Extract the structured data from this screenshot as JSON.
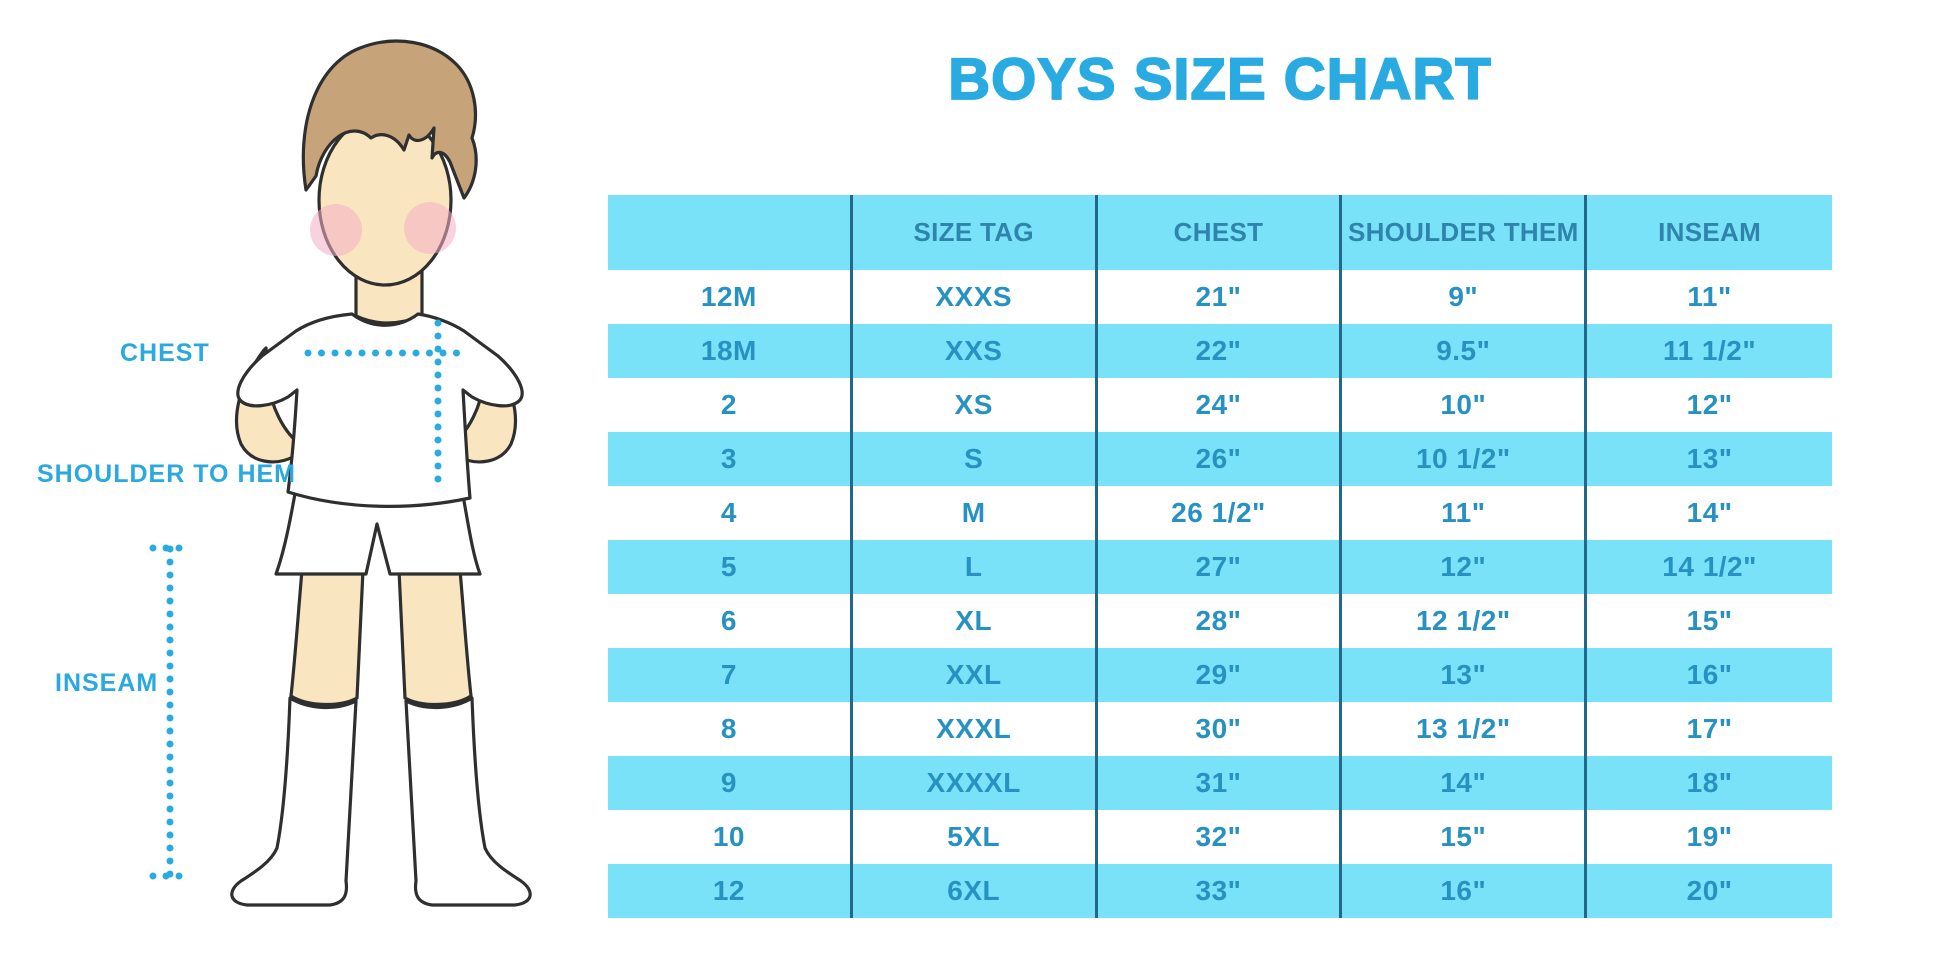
{
  "title": "BOYS SIZE CHART",
  "diagram": {
    "chest_label": "CHEST",
    "shoulder_to_hem_label": "SHOULDER TO HEM",
    "inseam_label": "INSEAM",
    "illustration": "boy in white t-shirt, shorts and knee socks with dotted measurement lines"
  },
  "colors": {
    "title_blue": "#29ABE2",
    "stripe_cyan": "#79E2F8",
    "header_text": "#2E84AC",
    "cell_text": "#2792C2",
    "divider_line": "#22678C",
    "label_blue": "#29A9E0",
    "dotted_line": "#29ABE2",
    "skin": "#FAE5C1",
    "hair": "#C6A379",
    "blush": "#F2AFC4"
  },
  "chart_data": {
    "type": "table",
    "title": "BOYS SIZE CHART",
    "columns": [
      "",
      "SIZE TAG",
      "CHEST",
      "SHOULDER THEM",
      "INSEAM"
    ],
    "rows": [
      [
        "12M",
        "XXXS",
        "21\"",
        "9\"",
        "11\""
      ],
      [
        "18M",
        "XXS",
        "22\"",
        "9.5\"",
        "11 1/2\""
      ],
      [
        "2",
        "XS",
        "24\"",
        "10\"",
        "12\""
      ],
      [
        "3",
        "S",
        "26\"",
        "10 1/2\"",
        "13\""
      ],
      [
        "4",
        "M",
        "26 1/2\"",
        "11\"",
        "14\""
      ],
      [
        "5",
        "L",
        "27\"",
        "12\"",
        "14 1/2\""
      ],
      [
        "6",
        "XL",
        "28\"",
        "12 1/2\"",
        "15\""
      ],
      [
        "7",
        "XXL",
        "29\"",
        "13\"",
        "16\""
      ],
      [
        "8",
        "XXXL",
        "30\"",
        "13 1/2\"",
        "17\""
      ],
      [
        "9",
        "XXXXL",
        "31\"",
        "14\"",
        "18\""
      ],
      [
        "10",
        "5XL",
        "32\"",
        "15\"",
        "19\""
      ],
      [
        "12",
        "6XL",
        "33\"",
        "16\"",
        "20\""
      ]
    ],
    "row_striping": "alternating white / cyan, header cyan",
    "grid": "4 interior vertical divider lines, no outer border"
  }
}
